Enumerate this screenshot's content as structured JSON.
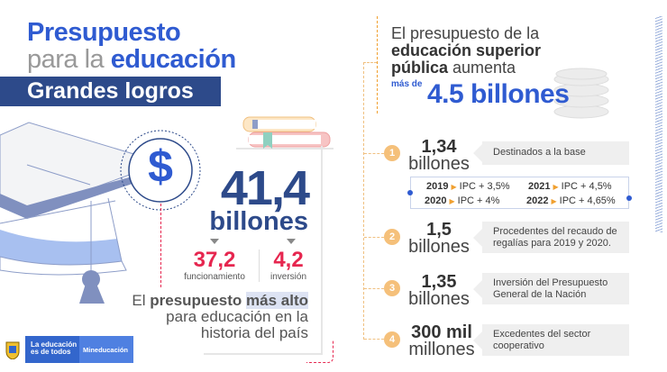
{
  "left": {
    "title_line1": "Presupuesto",
    "title_line2_light": "para la ",
    "title_line2_bold": "educación",
    "banner": "Grandes logros",
    "dollar_symbol": "$",
    "total_value": "41,4",
    "total_unit": "billones",
    "breakdown": [
      {
        "value": "37,2",
        "label": "funcionamiento"
      },
      {
        "value": "4,2",
        "label": "inversión"
      }
    ],
    "desc_pre": "El ",
    "desc_bold": "presupuesto ",
    "desc_highlight": "más alto",
    "desc_line2": "para educación en la",
    "desc_line3": "historia del país",
    "logo_tagline_1": "La educación",
    "logo_tagline_2": "es de todos",
    "logo_brand": "Mineducación"
  },
  "right": {
    "heading_1": "El presupuesto de la",
    "heading_2": "educación superior",
    "heading_3_bold": "pública",
    "heading_3_rest": " aumenta",
    "mas_de": "más de",
    "highlight": "4.5 billones",
    "items": [
      {
        "n": "1",
        "value": "1,34",
        "unit": "billones",
        "label": "Destinados a la base"
      },
      {
        "n": "2",
        "value": "1,5",
        "unit": "billones",
        "label": "Procedentes del recaudo de regalías para 2019 y 2020."
      },
      {
        "n": "3",
        "value": "1,35",
        "unit": "billones",
        "label": "Inversión del Presupuesto General de la Nación"
      },
      {
        "n": "4",
        "value": "300 mil",
        "unit": "millones",
        "label": "Excedentes del sector cooperativo"
      }
    ],
    "ipc": [
      {
        "year": "2019",
        "value": "IPC + 3,5%"
      },
      {
        "year": "2020",
        "value": "IPC + 4%"
      },
      {
        "year": "2021",
        "value": "IPC + 4,5%"
      },
      {
        "year": "2022",
        "value": "IPC + 4,65%"
      }
    ]
  },
  "colors": {
    "blue": "#2f5bd1",
    "navy": "#2d4a8a",
    "red": "#e6264f",
    "orange": "#f5c07a"
  }
}
